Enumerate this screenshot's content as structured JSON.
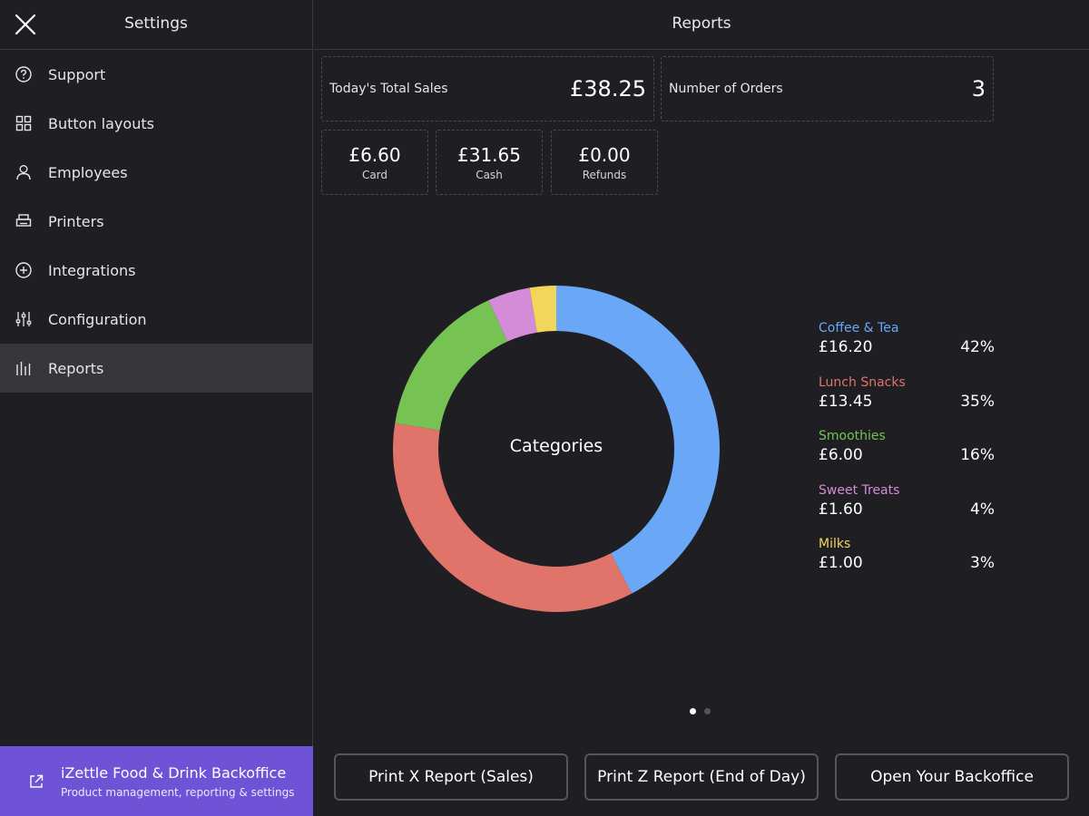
{
  "sidebar": {
    "title": "Settings",
    "close_icon": "close-icon",
    "items": [
      {
        "label": "Support",
        "icon": "help-circle-icon"
      },
      {
        "label": "Button layouts",
        "icon": "grid-icon"
      },
      {
        "label": "Employees",
        "icon": "person-icon"
      },
      {
        "label": "Printers",
        "icon": "printer-icon"
      },
      {
        "label": "Integrations",
        "icon": "plus-circle-icon"
      },
      {
        "label": "Configuration",
        "icon": "sliders-icon"
      },
      {
        "label": "Reports",
        "icon": "bar-chart-icon",
        "active": true
      }
    ],
    "backoffice": {
      "title": "iZettle Food & Drink Backoffice",
      "subtitle": "Product management, reporting & settings",
      "icon": "external-link-icon",
      "color": "#6e53d6"
    }
  },
  "main": {
    "title": "Reports",
    "summary": {
      "total_sales_label": "Today's Total Sales",
      "total_sales_value": "£38.25",
      "orders_label": "Number of Orders",
      "orders_value": "3"
    },
    "payments": [
      {
        "value": "£6.60",
        "label": "Card"
      },
      {
        "value": "£31.65",
        "label": "Cash"
      },
      {
        "value": "£0.00",
        "label": "Refunds"
      }
    ],
    "pagination": {
      "pages": 2,
      "current": 1
    },
    "actions": [
      {
        "label": "Print X Report (Sales)"
      },
      {
        "label": "Print Z Report (End of Day)"
      },
      {
        "label": "Open Your Backoffice"
      }
    ]
  },
  "chart_data": {
    "type": "pie",
    "center_label": "Categories",
    "categories": [
      "Coffee & Tea",
      "Lunch Snacks",
      "Smoothies",
      "Sweet Treats",
      "Milks"
    ],
    "values": [
      16.2,
      13.45,
      6.0,
      1.6,
      1.0
    ],
    "amounts": [
      "£16.20",
      "£13.45",
      "£6.00",
      "£1.60",
      "£1.00"
    ],
    "percents": [
      "42%",
      "35%",
      "16%",
      "4%",
      "3%"
    ],
    "colors": [
      "#6aa8f7",
      "#e0736a",
      "#76c253",
      "#d48bd8",
      "#f2d55b"
    ]
  }
}
